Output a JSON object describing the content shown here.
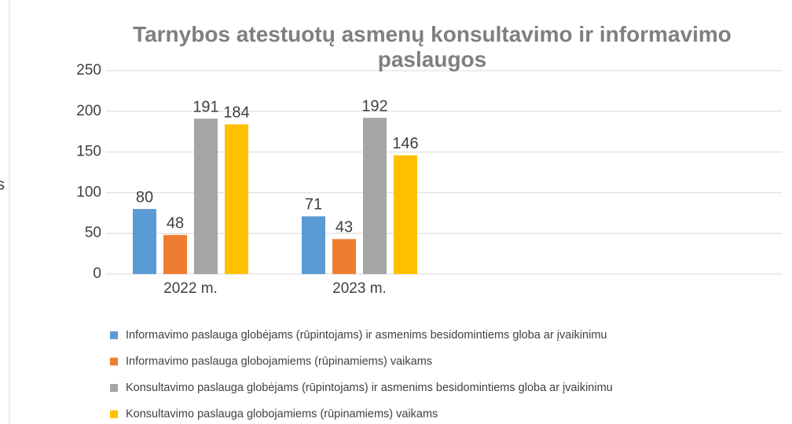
{
  "side_text": "s",
  "chart_data": {
    "type": "bar",
    "title": "Tarnybos atestuotų asmenų konsultavimo ir informavimo paslaugos",
    "categories": [
      "2022 m.",
      "2023 m.",
      null,
      null
    ],
    "series": [
      {
        "name": "Informavimo paslauga globėjams (rūpintojams) ir asmenims besidomintiems globa ar įvaikinimu",
        "color": "#5b9bd5",
        "values": [
          80,
          71,
          null,
          null
        ]
      },
      {
        "name": "Informavimo paslauga globojamiems (rūpinamiems) vaikams",
        "color": "#ed7d31",
        "values": [
          48,
          43,
          null,
          null
        ]
      },
      {
        "name": "Konsultavimo paslauga globėjams (rūpintojams) ir asmenims besidomintiems globa ar įvaikinimu",
        "color": "#a5a5a5",
        "values": [
          191,
          192,
          null,
          null
        ]
      },
      {
        "name": "Konsultavimo paslauga globojamiems (rūpinamiems) vaikams",
        "color": "#ffc000",
        "values": [
          184,
          146,
          null,
          null
        ]
      }
    ],
    "ylim": [
      0,
      250
    ],
    "yticks": [
      0,
      50,
      100,
      150,
      200,
      250
    ],
    "grid": true,
    "legend": "bottom"
  }
}
